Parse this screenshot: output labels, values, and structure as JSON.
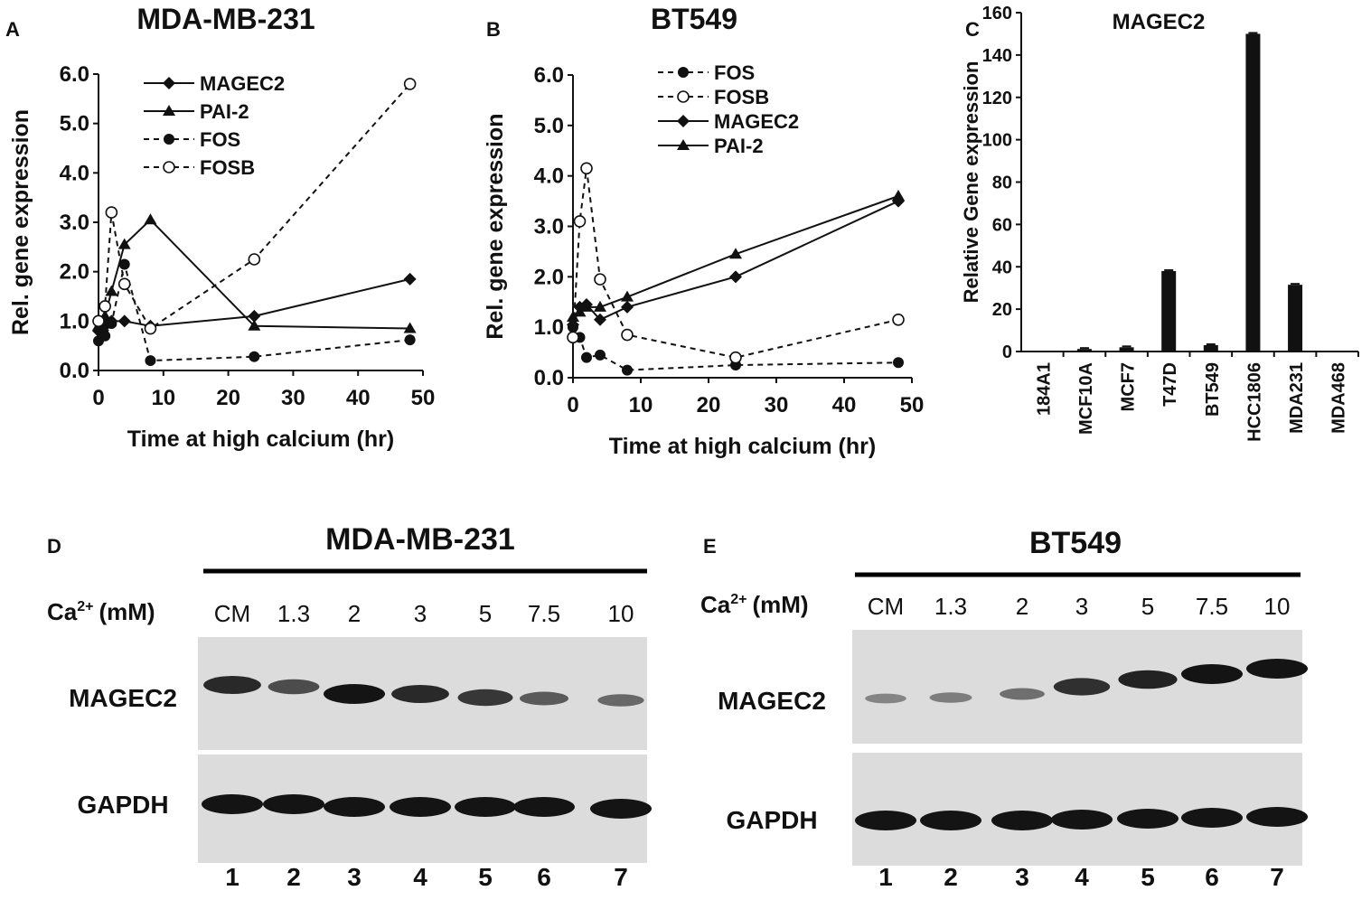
{
  "panels": {
    "A": {
      "letter": "A",
      "title": "MDA-MB-231"
    },
    "B": {
      "letter": "B",
      "title": "BT549"
    },
    "C": {
      "letter": "C",
      "title": "MAGEC2"
    },
    "D": {
      "letter": "D",
      "title": "MDA-MB-231",
      "ca_label": "Ca",
      "ca_sup": "2+",
      "ca_unit": "(mM)",
      "concentrations": [
        "CM",
        "1.3",
        "2",
        "3",
        "5",
        "7.5",
        "10"
      ],
      "lanes": [
        "1",
        "2",
        "3",
        "4",
        "5",
        "6",
        "7"
      ],
      "blots": [
        "MAGEC2",
        "GAPDH"
      ],
      "band_intensity": {
        "MAGEC2": [
          0.85,
          0.6,
          1.0,
          0.85,
          0.75,
          0.5,
          0.4
        ],
        "GAPDH": [
          1,
          1,
          1,
          1,
          1,
          1,
          1
        ]
      }
    },
    "E": {
      "letter": "E",
      "title": "BT549",
      "ca_label": "Ca",
      "ca_sup": "2+",
      "ca_unit": "(mM)",
      "concentrations": [
        "CM",
        "1.3",
        "2",
        "3",
        "5",
        "7.5",
        "10"
      ],
      "lanes": [
        "1",
        "2",
        "3",
        "4",
        "5",
        "6",
        "7"
      ],
      "blots": [
        "MAGEC2",
        "GAPDH"
      ],
      "band_intensity": {
        "MAGEC2": [
          0.2,
          0.25,
          0.35,
          0.8,
          0.9,
          1.0,
          1.0
        ],
        "GAPDH": [
          1,
          1,
          1,
          1,
          1,
          1,
          1
        ]
      }
    }
  },
  "chart_data": [
    {
      "id": "A",
      "type": "line",
      "title": "MDA-MB-231",
      "xlabel": "Time at high calcium (hr)",
      "ylabel": "Rel. gene expression",
      "xlim": [
        0,
        50
      ],
      "ylim": [
        0,
        6
      ],
      "xticks": [
        "0",
        "10",
        "20",
        "30",
        "40",
        "50"
      ],
      "yticks": [
        "0.0",
        "1.0",
        "2.0",
        "3.0",
        "4.0",
        "5.0",
        "6.0"
      ],
      "legend_position": "top-center",
      "series": [
        {
          "name": "MAGEC2",
          "marker": "diamond",
          "dash": "solid",
          "x": [
            0,
            1,
            2,
            4,
            8,
            24,
            48
          ],
          "y": [
            0.8,
            0.9,
            1.0,
            1.0,
            0.9,
            1.1,
            1.85
          ]
        },
        {
          "name": "PAI-2",
          "marker": "triangle",
          "dash": "solid",
          "x": [
            0,
            1,
            2,
            4,
            8,
            24,
            48
          ],
          "y": [
            0.9,
            1.1,
            1.6,
            2.55,
            3.05,
            0.9,
            0.85
          ]
        },
        {
          "name": "FOS",
          "marker": "circle-filled",
          "dash": "dashed",
          "x": [
            0,
            1,
            2,
            4,
            8,
            24,
            48
          ],
          "y": [
            0.6,
            0.7,
            0.95,
            2.15,
            0.2,
            0.28,
            0.62
          ]
        },
        {
          "name": "FOSB",
          "marker": "circle-open",
          "dash": "dashed",
          "x": [
            0,
            1,
            2,
            4,
            8,
            24,
            48
          ],
          "y": [
            1.0,
            1.3,
            3.2,
            1.75,
            0.85,
            2.25,
            5.8
          ]
        }
      ]
    },
    {
      "id": "B",
      "type": "line",
      "title": "BT549",
      "xlabel": "Time at high calcium (hr)",
      "ylabel": "Rel. gene expression",
      "xlim": [
        0,
        50
      ],
      "ylim": [
        0,
        6
      ],
      "xticks": [
        "0",
        "10",
        "20",
        "30",
        "40",
        "50"
      ],
      "yticks": [
        "0.0",
        "1.0",
        "2.0",
        "3.0",
        "4.0",
        "5.0",
        "6.0"
      ],
      "legend_position": "top-center",
      "series": [
        {
          "name": "FOS",
          "marker": "circle-filled",
          "dash": "dashed",
          "x": [
            0,
            1,
            2,
            4,
            8,
            24,
            48
          ],
          "y": [
            1.0,
            0.8,
            0.4,
            0.45,
            0.15,
            0.25,
            0.3
          ]
        },
        {
          "name": "FOSB",
          "marker": "circle-open",
          "dash": "dashed",
          "x": [
            0,
            1,
            2,
            4,
            8,
            24,
            48
          ],
          "y": [
            0.8,
            3.1,
            4.15,
            1.95,
            0.85,
            0.4,
            1.15
          ]
        },
        {
          "name": "MAGEC2",
          "marker": "diamond",
          "dash": "solid",
          "x": [
            0,
            1,
            2,
            4,
            8,
            24,
            48
          ],
          "y": [
            1.05,
            1.4,
            1.45,
            1.15,
            1.4,
            2.0,
            3.5
          ]
        },
        {
          "name": "PAI-2",
          "marker": "triangle",
          "dash": "solid",
          "x": [
            0,
            1,
            2,
            4,
            8,
            24,
            48
          ],
          "y": [
            1.2,
            1.3,
            1.4,
            1.4,
            1.6,
            2.45,
            3.6
          ]
        }
      ]
    },
    {
      "id": "C",
      "type": "bar",
      "title": "MAGEC2",
      "xlabel": "",
      "ylabel": "Relative Gene expression",
      "ylim": [
        0,
        160
      ],
      "yticks": [
        "0",
        "20",
        "40",
        "60",
        "80",
        "100",
        "120",
        "140",
        "160"
      ],
      "categories": [
        "184A1",
        "MCF10A",
        "MCF7",
        "T47D",
        "BT549",
        "HCC1806",
        "MDA231",
        "MDA468"
      ],
      "values": [
        0.2,
        1.2,
        2.0,
        38,
        3.0,
        150,
        31.5,
        0.2
      ]
    }
  ]
}
